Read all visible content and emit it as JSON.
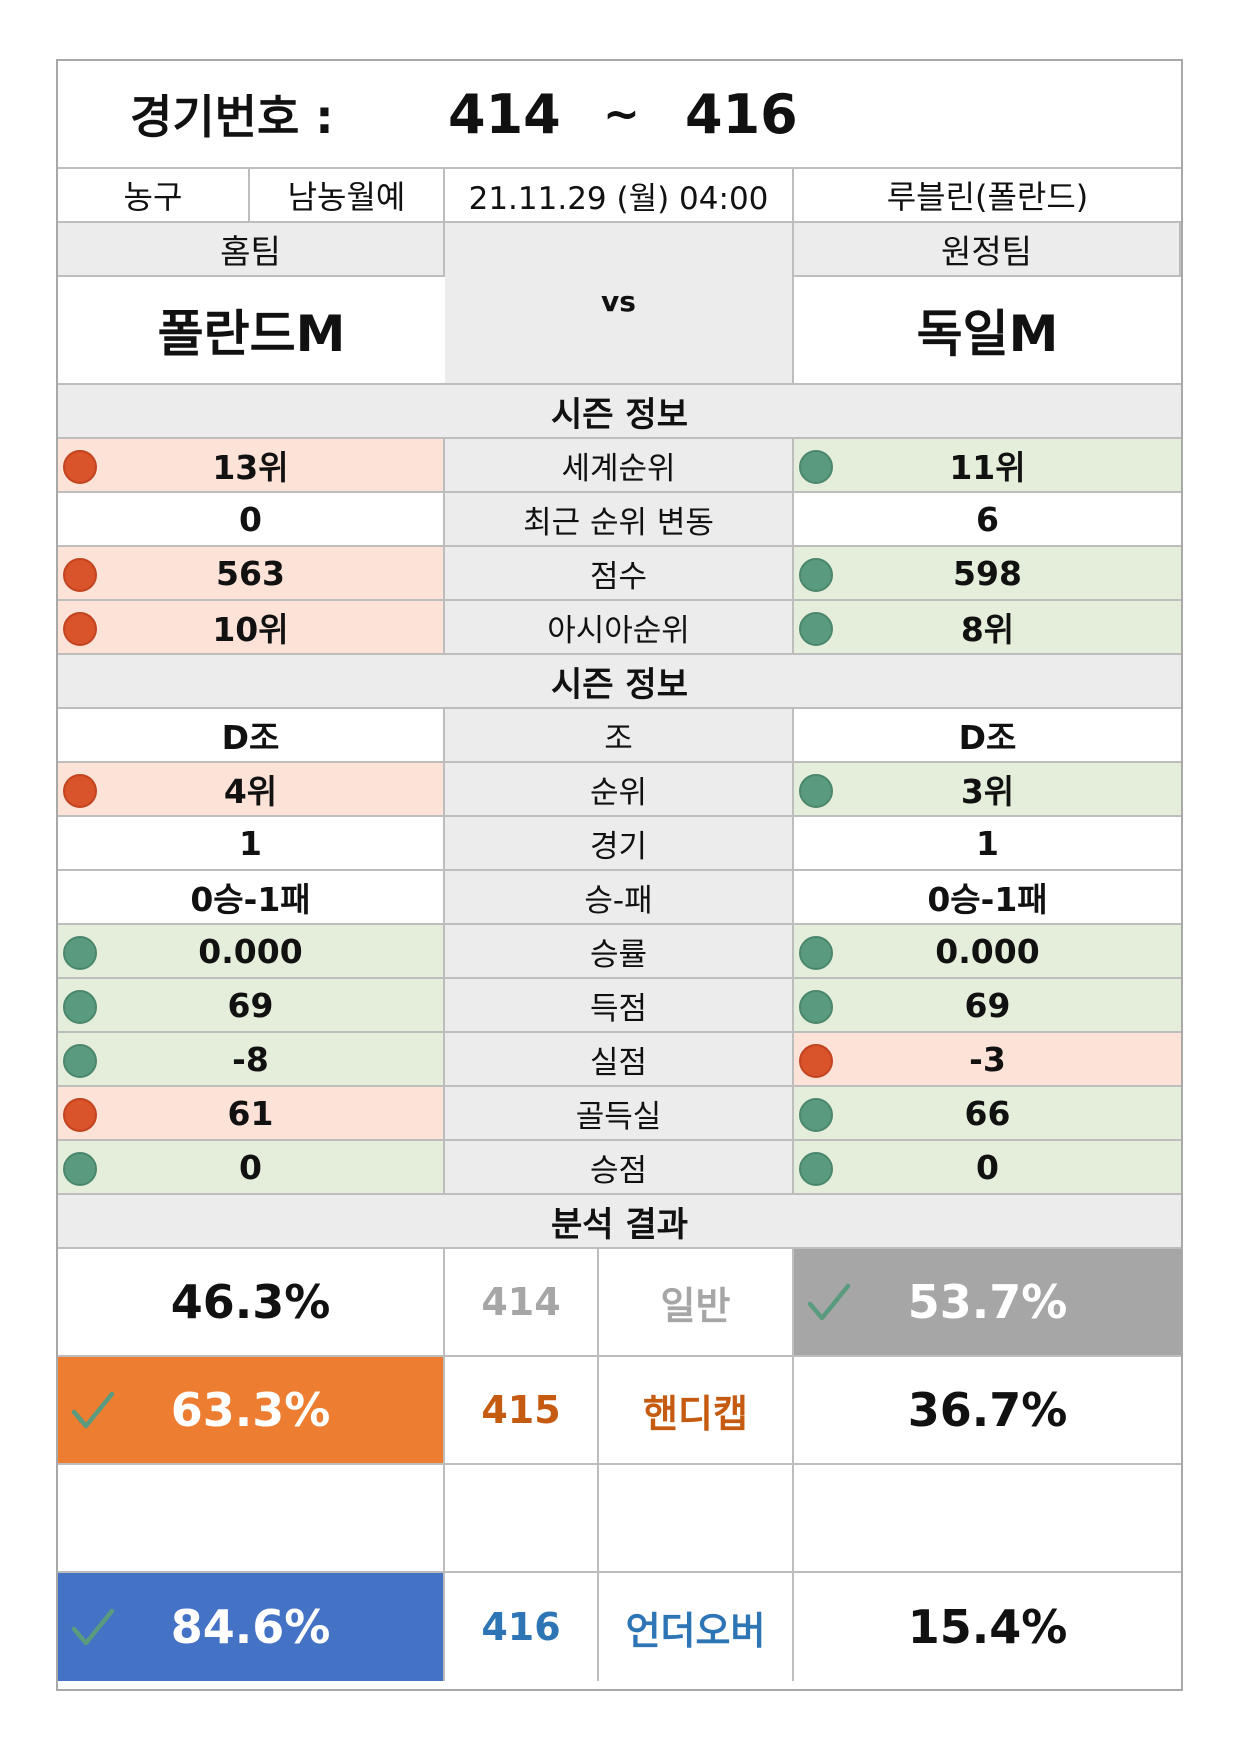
{
  "header": {
    "match_label": "경기번호 :",
    "match_from": "414",
    "tilde": "~",
    "match_to": "416"
  },
  "info": {
    "sport": "농구",
    "league": "남농월예",
    "datetime": "21.11.29 (월) 04:00",
    "venue": "루블린(폴란드)"
  },
  "teams": {
    "home_label": "홈팀",
    "away_label": "원정팀",
    "vs": "vs",
    "home_name": "폴란드M",
    "away_name": "독일M"
  },
  "season_rank": {
    "title": "시즌 정보",
    "rows": [
      {
        "home": "13위",
        "label": "세계순위",
        "away": "11위",
        "home_status": "bad",
        "away_status": "good"
      },
      {
        "home": "0",
        "label": "최근 순위 변동",
        "away": "6",
        "home_status": "none",
        "away_status": "none"
      },
      {
        "home": "563",
        "label": "점수",
        "away": "598",
        "home_status": "bad",
        "away_status": "good"
      },
      {
        "home": "10위",
        "label": "아시아순위",
        "away": "8위",
        "home_status": "bad",
        "away_status": "good"
      }
    ]
  },
  "season_group": {
    "title": "시즌 정보",
    "rows": [
      {
        "home": "D조",
        "label": "조",
        "away": "D조",
        "home_status": "none",
        "away_status": "none"
      },
      {
        "home": "4위",
        "label": "순위",
        "away": "3위",
        "home_status": "bad",
        "away_status": "good"
      },
      {
        "home": "1",
        "label": "경기",
        "away": "1",
        "home_status": "none",
        "away_status": "none"
      },
      {
        "home": "0승-1패",
        "label": "승-패",
        "away": "0승-1패",
        "home_status": "none",
        "away_status": "none"
      },
      {
        "home": "0.000",
        "label": "승률",
        "away": "0.000",
        "home_status": "good",
        "away_status": "good"
      },
      {
        "home": "69",
        "label": "득점",
        "away": "69",
        "home_status": "good",
        "away_status": "good"
      },
      {
        "home": "-8",
        "label": "실점",
        "away": "-3",
        "home_status": "good",
        "away_status": "bad"
      },
      {
        "home": "61",
        "label": "골득실",
        "away": "66",
        "home_status": "bad",
        "away_status": "good"
      },
      {
        "home": "0",
        "label": "승점",
        "away": "0",
        "home_status": "good",
        "away_status": "good"
      }
    ]
  },
  "analysis": {
    "title": "분석 결과",
    "rows": [
      {
        "home": "46.3%",
        "num": "414",
        "type": "일반",
        "away": "53.7%",
        "pick": "away",
        "accent": "#a6a6a6",
        "label_color": "#a6a6a6"
      },
      {
        "home": "63.3%",
        "num": "415",
        "type": "핸디캡",
        "away": "36.7%",
        "pick": "home",
        "accent": "#ed7d31",
        "label_color": "#c55a11"
      },
      {
        "home": "",
        "num": "",
        "type": "",
        "away": "",
        "pick": "none",
        "accent": "#ffffff",
        "label_color": "#000000"
      },
      {
        "home": "84.6%",
        "num": "416",
        "type": "언더오버",
        "away": "15.4%",
        "pick": "home",
        "accent": "#4472c4",
        "label_color": "#2e75b6"
      }
    ]
  },
  "colors": {
    "bad_dot": "#d9532b",
    "good_dot": "#5a9b7f",
    "bad_bg": "#fde2d8",
    "good_bg": "#e4eedb",
    "check": "#5a9b7f"
  },
  "icons": {
    "status": "circle-dot-icon",
    "pick": "check-icon"
  }
}
